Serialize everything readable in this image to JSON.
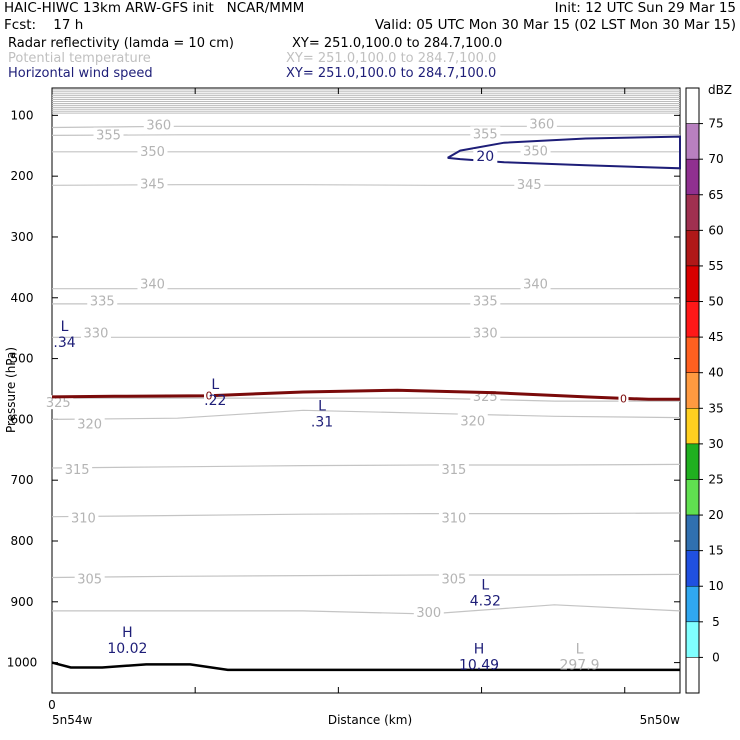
{
  "header": {
    "title_left": "HAIC-HIWC 13km ARW-GFS init   NCAR/MMM",
    "init": "Init: 12 UTC Sun 29 Mar 15",
    "fcst": "Fcst:    17 h",
    "valid": "Valid: 05 UTC Mon 30 Mar 15 (02 LST Mon 30 Mar 15)"
  },
  "legend_rows": [
    {
      "name": "Radar reflectivity (lamda = 10 cm)",
      "xy": "XY= 251.0,100.0 to 284.7,100.0",
      "color": "#000000"
    },
    {
      "name": "Potential temperature",
      "xy": "XY= 251.0,100.0 to 284.7,100.0",
      "color": "#c0c0c0"
    },
    {
      "name": "Horizontal wind speed",
      "xy": "XY= 251.0,100.0 to 284.7,100.0",
      "color": "#1e1e78"
    }
  ],
  "axes": {
    "ylabel": "Pressure (hPa)",
    "xlabel": "Distance (km)",
    "x_start_label": "0",
    "left_station": "5n54w",
    "right_station": "5n50w"
  },
  "chart_data": {
    "type": "contour",
    "y_scale": "linear",
    "ylim": [
      55,
      1050
    ],
    "y_ticks": [
      100,
      200,
      300,
      400,
      500,
      600,
      700,
      800,
      900,
      1000
    ],
    "x_ticks": [
      0
    ],
    "theta_contours": [
      {
        "level": 360,
        "p": [
          120,
          118,
          118,
          118,
          118,
          118
        ]
      },
      {
        "level": 355,
        "p": [
          133,
          132,
          132,
          132,
          132,
          132
        ]
      },
      {
        "level": 350,
        "p": [
          160,
          160,
          160,
          160,
          160,
          160
        ]
      },
      {
        "level": 345,
        "p": [
          215,
          214,
          214,
          215,
          215,
          215
        ]
      },
      {
        "level": 340,
        "p": [
          385,
          385,
          385,
          385,
          385,
          385
        ]
      },
      {
        "level": 335,
        "p": [
          410,
          410,
          410,
          410,
          410,
          410
        ]
      },
      {
        "level": 330,
        "p": [
          465,
          465,
          465,
          465,
          465,
          465
        ]
      },
      {
        "level": 325,
        "p": [
          565,
          565,
          565,
          565,
          570,
          570
        ]
      },
      {
        "level": 320,
        "p": [
          600,
          598,
          585,
          590,
          595,
          597
        ]
      },
      {
        "level": 315,
        "p": [
          680,
          678,
          676,
          675,
          675,
          674
        ]
      },
      {
        "level": 310,
        "p": [
          760,
          758,
          756,
          755,
          755,
          754
        ]
      },
      {
        "level": 305,
        "p": [
          860,
          858,
          857,
          856,
          856,
          855
        ]
      },
      {
        "level": 300,
        "p": [
          915,
          915,
          915,
          920,
          905,
          915
        ]
      }
    ],
    "theta_label_positions": [
      {
        "text": "360",
        "x": 0.17,
        "p": 118
      },
      {
        "text": "360",
        "x": 0.78,
        "p": 117
      },
      {
        "text": "355",
        "x": 0.09,
        "p": 135
      },
      {
        "text": "355",
        "x": 0.69,
        "p": 133
      },
      {
        "text": "350",
        "x": 0.16,
        "p": 162
      },
      {
        "text": "350",
        "x": 0.77,
        "p": 161
      },
      {
        "text": "345",
        "x": 0.16,
        "p": 215
      },
      {
        "text": "345",
        "x": 0.76,
        "p": 216
      },
      {
        "text": "340",
        "x": 0.16,
        "p": 380
      },
      {
        "text": "340",
        "x": 0.77,
        "p": 380
      },
      {
        "text": "335",
        "x": 0.08,
        "p": 408
      },
      {
        "text": "335",
        "x": 0.69,
        "p": 408
      },
      {
        "text": "330",
        "x": 0.07,
        "p": 460
      },
      {
        "text": "330",
        "x": 0.69,
        "p": 460
      },
      {
        "text": "325",
        "x": 0.01,
        "p": 575
      },
      {
        "text": "325",
        "x": 0.69,
        "p": 565
      },
      {
        "text": "320",
        "x": 0.06,
        "p": 610
      },
      {
        "text": "320",
        "x": 0.67,
        "p": 605
      },
      {
        "text": "315",
        "x": 0.04,
        "p": 685
      },
      {
        "text": "315",
        "x": 0.64,
        "p": 685
      },
      {
        "text": "310",
        "x": 0.05,
        "p": 765
      },
      {
        "text": "310",
        "x": 0.64,
        "p": 765
      },
      {
        "text": "305",
        "x": 0.06,
        "p": 865
      },
      {
        "text": "305",
        "x": 0.64,
        "p": 865
      },
      {
        "text": "300",
        "x": 0.6,
        "p": 920
      }
    ],
    "wind_contour": {
      "label": "20",
      "x": [
        0.63,
        0.65,
        0.72,
        0.85,
        1.0,
        1.0,
        0.85,
        0.72,
        0.65,
        0.63
      ],
      "p": [
        170,
        158,
        145,
        138,
        135,
        187,
        182,
        177,
        172,
        170
      ]
    },
    "zero_contour": {
      "label": "0",
      "x": [
        0.0,
        0.1,
        0.25,
        0.4,
        0.55,
        0.7,
        0.85,
        0.95,
        1.0
      ],
      "p": [
        563,
        562,
        561,
        555,
        552,
        556,
        563,
        567,
        567
      ]
    },
    "terrain": {
      "x": [
        0.0,
        0.03,
        0.08,
        0.15,
        0.22,
        0.28,
        0.35,
        0.5,
        0.7,
        1.0
      ],
      "p": [
        1000,
        1008,
        1008,
        1003,
        1003,
        1012,
        1012,
        1012,
        1012,
        1012
      ]
    },
    "annotations": [
      {
        "mark": "L",
        "value": ".34",
        "x": 0.02,
        "p": 455,
        "color": "navy"
      },
      {
        "mark": "L",
        "value": ".22",
        "x": 0.26,
        "p": 550,
        "color": "navy"
      },
      {
        "mark": "L",
        "value": ".31",
        "x": 0.43,
        "p": 585,
        "color": "navy"
      },
      {
        "mark": "L",
        "value": "4.32",
        "x": 0.69,
        "p": 880,
        "color": "navy"
      },
      {
        "mark": "H",
        "value": "10.02",
        "x": 0.12,
        "p": 958,
        "color": "navy"
      },
      {
        "mark": "H",
        "value": "10.49",
        "x": 0.68,
        "p": 985,
        "color": "navy"
      },
      {
        "mark": "L",
        "value": "297.9",
        "x": 0.84,
        "p": 985,
        "color": "gray"
      }
    ],
    "colorbar": {
      "unit": "dBZ",
      "levels": [
        "75",
        "70",
        "65",
        "60",
        "55",
        "50",
        "45",
        "40",
        "35",
        "30",
        "25",
        "20",
        "15",
        "10",
        "5",
        "0"
      ],
      "colors": [
        "#ffffff",
        "#b880c0",
        "#903090",
        "#a03050",
        "#b01818",
        "#d80000",
        "#ff1818",
        "#ff6020",
        "#ff9a40",
        "#ffd020",
        "#20b020",
        "#60e050",
        "#3070b0",
        "#2050e0",
        "#30a8f0",
        "#80ffff",
        "#ffffff"
      ]
    }
  }
}
